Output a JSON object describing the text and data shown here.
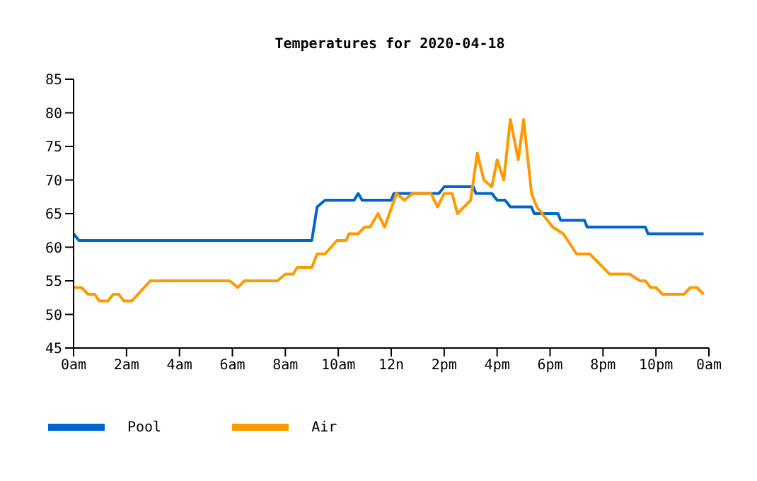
{
  "chart_data": {
    "type": "line",
    "title": "Temperatures for 2020-04-18",
    "xlim": [
      "2020-04-18T00:00",
      "2020-04-19T00:00"
    ],
    "xticks": [
      {
        "value": "2020-04-18T00:00",
        "label": "0am"
      },
      {
        "value": "2020-04-18T02:00",
        "label": "2am"
      },
      {
        "value": "2020-04-18T04:00",
        "label": "4am"
      },
      {
        "value": "2020-04-18T06:00",
        "label": "6am"
      },
      {
        "value": "2020-04-18T08:00",
        "label": "8am"
      },
      {
        "value": "2020-04-18T10:00",
        "label": "10am"
      },
      {
        "value": "2020-04-18T12:00",
        "label": "12n"
      },
      {
        "value": "2020-04-18T14:00",
        "label": "2pm"
      },
      {
        "value": "2020-04-18T16:00",
        "label": "4pm"
      },
      {
        "value": "2020-04-18T18:00",
        "label": "6pm"
      },
      {
        "value": "2020-04-18T20:00",
        "label": "8pm"
      },
      {
        "value": "2020-04-18T22:00",
        "label": "10pm"
      },
      {
        "value": "2020-04-19T00:00",
        "label": "0am"
      }
    ],
    "ylim": [
      45,
      85
    ],
    "yticks": [
      45,
      50,
      55,
      60,
      65,
      70,
      75,
      80,
      85
    ],
    "legend": "bottom left",
    "marker": "none",
    "line_style": "solid",
    "series": [
      {
        "name": "Pool",
        "color": "#0066cc",
        "x": [
          "2020-04-18T00:00",
          "2020-04-18T00:12",
          "2020-04-18T09:00",
          "2020-04-18T09:12",
          "2020-04-18T09:30",
          "2020-04-18T10:36",
          "2020-04-18T10:45",
          "2020-04-18T10:54",
          "2020-04-18T12:00",
          "2020-04-18T12:06",
          "2020-04-18T13:48",
          "2020-04-18T14:00",
          "2020-04-18T15:06",
          "2020-04-18T15:12",
          "2020-04-18T15:48",
          "2020-04-18T16:00",
          "2020-04-18T16:18",
          "2020-04-18T16:30",
          "2020-04-18T17:18",
          "2020-04-18T17:24",
          "2020-04-18T18:18",
          "2020-04-18T18:24",
          "2020-04-18T19:18",
          "2020-04-18T19:24",
          "2020-04-18T21:36",
          "2020-04-18T21:42",
          "2020-04-18T23:48"
        ],
        "values": [
          62,
          61,
          61,
          66,
          67,
          67,
          68,
          67,
          67,
          68,
          68,
          69,
          69,
          68,
          68,
          67,
          67,
          66,
          66,
          65,
          65,
          64,
          64,
          63,
          63,
          62,
          62
        ]
      },
      {
        "name": "Air",
        "color": "#ff9900",
        "x": [
          "2020-04-18T00:00",
          "2020-04-18T00:18",
          "2020-04-18T00:33",
          "2020-04-18T00:48",
          "2020-04-18T00:58",
          "2020-04-18T01:18",
          "2020-04-18T01:30",
          "2020-04-18T01:42",
          "2020-04-18T01:54",
          "2020-04-18T02:12",
          "2020-04-18T02:54",
          "2020-04-18T05:54",
          "2020-04-18T06:12",
          "2020-04-18T06:27",
          "2020-04-18T07:42",
          "2020-04-18T08:00",
          "2020-04-18T08:18",
          "2020-04-18T08:27",
          "2020-04-18T09:00",
          "2020-04-18T09:12",
          "2020-04-18T09:30",
          "2020-04-18T09:57",
          "2020-04-18T10:18",
          "2020-04-18T10:24",
          "2020-04-18T10:45",
          "2020-04-18T11:00",
          "2020-04-18T11:12",
          "2020-04-18T11:30",
          "2020-04-18T11:45",
          "2020-04-18T12:12",
          "2020-04-18T12:30",
          "2020-04-18T12:48",
          "2020-04-18T13:30",
          "2020-04-18T13:45",
          "2020-04-18T14:00",
          "2020-04-18T14:18",
          "2020-04-18T14:30",
          "2020-04-18T15:00",
          "2020-04-18T15:15",
          "2020-04-18T15:30",
          "2020-04-18T15:48",
          "2020-04-18T16:00",
          "2020-04-18T16:15",
          "2020-04-18T16:30",
          "2020-04-18T16:48",
          "2020-04-18T17:00",
          "2020-04-18T17:18",
          "2020-04-18T17:30",
          "2020-04-18T18:06",
          "2020-04-18T18:30",
          "2020-04-18T19:00",
          "2020-04-18T19:30",
          "2020-04-18T20:15",
          "2020-04-18T21:00",
          "2020-04-18T21:24",
          "2020-04-18T21:36",
          "2020-04-18T21:48",
          "2020-04-18T22:00",
          "2020-04-18T22:15",
          "2020-04-18T23:03",
          "2020-04-18T23:18",
          "2020-04-18T23:33",
          "2020-04-18T23:48"
        ],
        "values": [
          54,
          54,
          53,
          53,
          52,
          52,
          53,
          53,
          52,
          52,
          55,
          55,
          54,
          55,
          55,
          56,
          56,
          57,
          57,
          59,
          59,
          61,
          61,
          62,
          62,
          63,
          63,
          65,
          63,
          68,
          67,
          68,
          68,
          66,
          68,
          68,
          65,
          67,
          74,
          70,
          69,
          73,
          70,
          79,
          73,
          79,
          68,
          66,
          63,
          62,
          59,
          59,
          56,
          56,
          55,
          55,
          54,
          54,
          53,
          53,
          54,
          54,
          53
        ]
      }
    ]
  }
}
